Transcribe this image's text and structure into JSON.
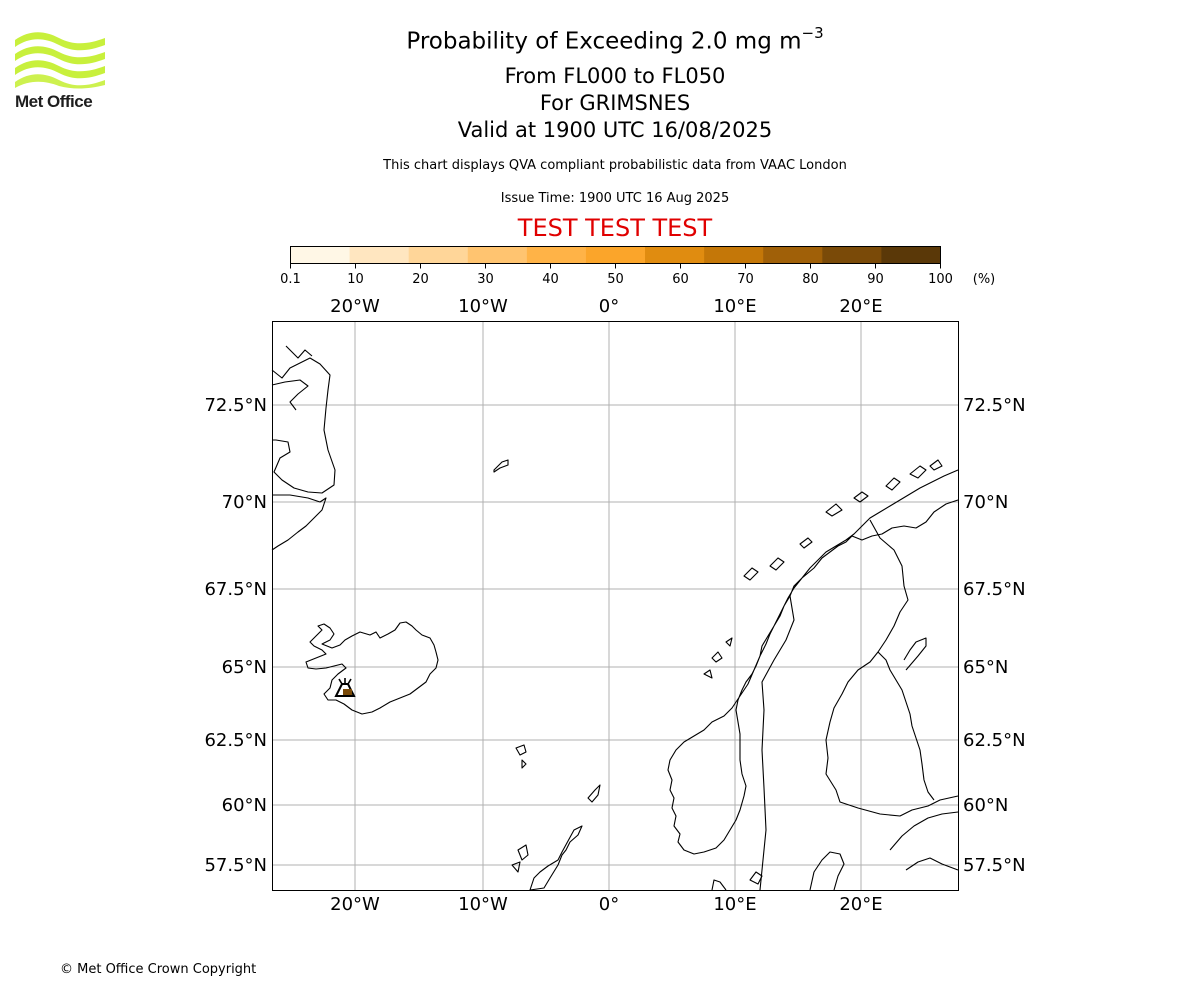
{
  "header": {
    "title_main": "Probability of Exceeding 2.0 mg m",
    "title_superscript": "−3",
    "fl_range": "From FL000 to FL050",
    "volcano": "For GRIMSNES",
    "valid_time": "Valid at 1900 UTC 16/08/2025",
    "description": "This chart displays QVA compliant probabilistic data from VAAC London",
    "issue_time": "Issue Time: 1900 UTC 16 Aug 2025",
    "test_banner": "TEST TEST TEST"
  },
  "logo": {
    "text": "Met Office",
    "color": "#c8f03c"
  },
  "colorbar": {
    "ticks": [
      "0.1",
      "10",
      "20",
      "30",
      "40",
      "50",
      "60",
      "70",
      "80",
      "90",
      "100"
    ],
    "unit": "(%)",
    "colors": [
      "#fff7e6",
      "#ffe6c0",
      "#ffd699",
      "#ffc470",
      "#ffb347",
      "#fba52a",
      "#e08c10",
      "#c47708",
      "#a06008",
      "#7a4a08",
      "#5a3808"
    ]
  },
  "map": {
    "lon_labels": [
      "20°W",
      "10°W",
      "0°",
      "10°E",
      "20°E"
    ],
    "lat_labels": [
      "72.5°N",
      "70°N",
      "67.5°N",
      "65°N",
      "62.5°N",
      "60°N",
      "57.5°N"
    ],
    "volcano_marker": "volcano-icon"
  },
  "footer": {
    "copyright": "© Met Office Crown Copyright"
  }
}
